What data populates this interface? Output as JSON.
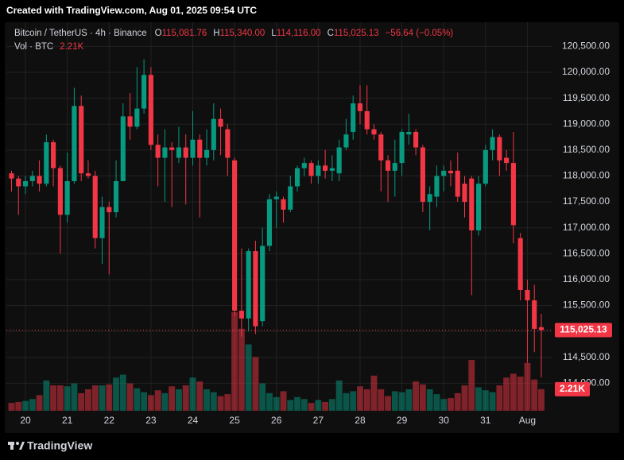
{
  "banner": "Created with TradingView.com, Aug 01, 2025 09:54 UTC",
  "footer": "TradingView",
  "chart_data": {
    "type": "candlestick",
    "legend": {
      "symbol": "Bitcoin / TetherUS · 4h · Binance",
      "open_prefix": "O",
      "open": "115,081.76",
      "high_prefix": "H",
      "high": "115,340.00",
      "low_prefix": "L",
      "low": "114,116.00",
      "close_prefix": "C",
      "close": "115,025.13",
      "change": "−56.64 (−0.05%)",
      "volume_name": "Vol · BTC",
      "volume": "2.21K"
    },
    "up_color": "#089981",
    "down_color": "#f23645",
    "x": [
      -2,
      -1,
      0,
      1,
      2,
      3,
      4,
      5,
      6,
      7,
      8,
      9,
      10,
      11,
      12,
      13,
      14,
      15,
      16,
      17,
      18,
      19,
      20,
      21,
      22,
      23,
      24,
      25,
      26,
      27,
      28,
      29,
      30,
      31,
      32,
      33,
      34,
      35,
      36,
      37,
      38,
      39,
      40,
      41,
      42,
      43,
      44,
      45,
      46,
      47,
      48,
      49,
      50,
      51,
      52,
      53,
      54,
      55,
      56,
      57,
      58,
      59,
      60,
      61,
      62,
      63,
      64,
      65,
      66,
      67,
      68,
      69,
      70,
      71,
      72,
      73,
      74
    ],
    "open": [
      118050,
      117950,
      117800,
      117900,
      118000,
      117850,
      118650,
      118150,
      117250,
      117900,
      119350,
      118050,
      118000,
      116800,
      117400,
      117300,
      117900,
      119150,
      118950,
      119300,
      119950,
      118600,
      118350,
      118550,
      118350,
      118550,
      118350,
      118700,
      118350,
      118500,
      119100,
      118900,
      118300,
      115400,
      115250,
      116550,
      115200,
      116650,
      117550,
      117550,
      117350,
      117800,
      118150,
      118250,
      118000,
      118200,
      118100,
      118050,
      118550,
      118850,
      119400,
      119250,
      118900,
      118800,
      118300,
      118100,
      118250,
      118800,
      118850,
      118550,
      117500,
      117600,
      118000,
      118100,
      118100,
      117850,
      117950,
      116950,
      117850,
      118500,
      118750,
      118350,
      118250,
      116800,
      115800,
      115600,
      115081.76
    ],
    "high": [
      118100,
      118000,
      118000,
      118100,
      118300,
      118800,
      118700,
      118200,
      118450,
      119700,
      119550,
      118300,
      118100,
      117600,
      117500,
      118300,
      119400,
      119600,
      120100,
      120250,
      120100,
      118800,
      118900,
      118650,
      118950,
      118800,
      119250,
      118800,
      118900,
      119400,
      119300,
      119000,
      118350,
      116600,
      116600,
      116750,
      117000,
      117650,
      117700,
      117600,
      118000,
      118200,
      118350,
      118300,
      118300,
      118500,
      118400,
      118700,
      119100,
      119550,
      119750,
      119750,
      119000,
      118850,
      118400,
      118700,
      118900,
      119200,
      118900,
      118600,
      117800,
      118200,
      118200,
      118300,
      118450,
      118000,
      118000,
      118000,
      118600,
      118900,
      118800,
      118500,
      118850,
      116900,
      116000,
      115900,
      115340
    ],
    "low": [
      117700,
      117250,
      117650,
      117800,
      117700,
      117800,
      117800,
      116500,
      117100,
      117850,
      117900,
      117950,
      116600,
      116300,
      116100,
      117200,
      117900,
      118700,
      118900,
      119200,
      118500,
      117800,
      117500,
      117400,
      118250,
      117450,
      118200,
      117200,
      118200,
      118300,
      118400,
      118000,
      115300,
      114900,
      115000,
      114950,
      115100,
      116550,
      117000,
      117100,
      117300,
      117700,
      118000,
      117850,
      117850,
      117950,
      117900,
      117900,
      118500,
      118700,
      119000,
      118800,
      118700,
      117700,
      117500,
      117600,
      118000,
      118600,
      118400,
      117300,
      116950,
      117400,
      117700,
      117800,
      117500,
      117200,
      115700,
      116850,
      117800,
      118300,
      118000,
      118100,
      116700,
      115600,
      114400,
      114600,
      114116
    ],
    "close": [
      117950,
      117800,
      117900,
      118000,
      117850,
      118650,
      118150,
      117250,
      117900,
      119350,
      118050,
      118000,
      116800,
      117400,
      117300,
      117900,
      119150,
      118950,
      119300,
      119950,
      118600,
      118350,
      118550,
      118500,
      118550,
      118350,
      118700,
      118350,
      118500,
      119100,
      118950,
      118350,
      115400,
      115250,
      116550,
      115100,
      116650,
      117550,
      117600,
      117350,
      117800,
      118150,
      118250,
      118000,
      118200,
      118100,
      118150,
      118550,
      118800,
      119400,
      119250,
      118900,
      118800,
      118300,
      118100,
      118250,
      118850,
      118850,
      118550,
      117500,
      117650,
      118000,
      118100,
      118050,
      117600,
      117500,
      116950,
      117850,
      118500,
      118750,
      118300,
      118250,
      117050,
      115800,
      115600,
      115050,
      115025.13
    ],
    "volume": [
      800,
      900,
      1000,
      1200,
      1600,
      3100,
      2600,
      2600,
      2500,
      2800,
      1800,
      2200,
      2600,
      2600,
      2700,
      3400,
      3700,
      2800,
      2300,
      1900,
      1600,
      2100,
      1800,
      2500,
      2200,
      2600,
      3400,
      3000,
      2200,
      1900,
      1500,
      1700,
      10100,
      8400,
      6800,
      5500,
      2800,
      1800,
      1400,
      2000,
      1100,
      1400,
      1200,
      800,
      1100,
      900,
      1200,
      3100,
      1800,
      2000,
      2500,
      2200,
      3600,
      2200,
      1500,
      2000,
      1900,
      2200,
      3000,
      2700,
      2200,
      1700,
      1200,
      1300,
      1800,
      2600,
      5200,
      2400,
      2100,
      1900,
      2600,
      3400,
      3800,
      3500,
      4900,
      3200,
      2210
    ],
    "last_price_label": "115,025.13",
    "last_volume_label": "2.21K",
    "xlim": [
      -2.74,
      75.6
    ],
    "ylim": [
      113470,
      120965
    ],
    "volume_lim": [
      0,
      39800
    ],
    "yticks": [
      {
        "value": 114000,
        "label": "114,000.00"
      },
      {
        "value": 114500,
        "label": "114,500.00"
      },
      {
        "value": 115000,
        "label": "115,000.00"
      },
      {
        "value": 115500,
        "label": "115,500.00"
      },
      {
        "value": 116000,
        "label": "116,000.00"
      },
      {
        "value": 116500,
        "label": "116,500.00"
      },
      {
        "value": 117000,
        "label": "117,000.00"
      },
      {
        "value": 117500,
        "label": "117,500.00"
      },
      {
        "value": 118000,
        "label": "118,000.00"
      },
      {
        "value": 118500,
        "label": "118,500.00"
      },
      {
        "value": 119000,
        "label": "119,000.00"
      },
      {
        "value": 119500,
        "label": "119,500.00"
      },
      {
        "value": 120000,
        "label": "120,000.00"
      },
      {
        "value": 120500,
        "label": "120,500.00"
      }
    ],
    "xticks": [
      {
        "value": 0,
        "label": "20"
      },
      {
        "value": 6,
        "label": "21"
      },
      {
        "value": 12,
        "label": "22"
      },
      {
        "value": 18,
        "label": "23"
      },
      {
        "value": 24,
        "label": "24"
      },
      {
        "value": 30,
        "label": "25"
      },
      {
        "value": 36,
        "label": "26"
      },
      {
        "value": 42,
        "label": "27"
      },
      {
        "value": 48,
        "label": "28"
      },
      {
        "value": 54,
        "label": "29"
      },
      {
        "value": 60,
        "label": "30"
      },
      {
        "value": 66,
        "label": "31"
      },
      {
        "value": 72,
        "label": "Aug"
      }
    ],
    "grid": true
  }
}
